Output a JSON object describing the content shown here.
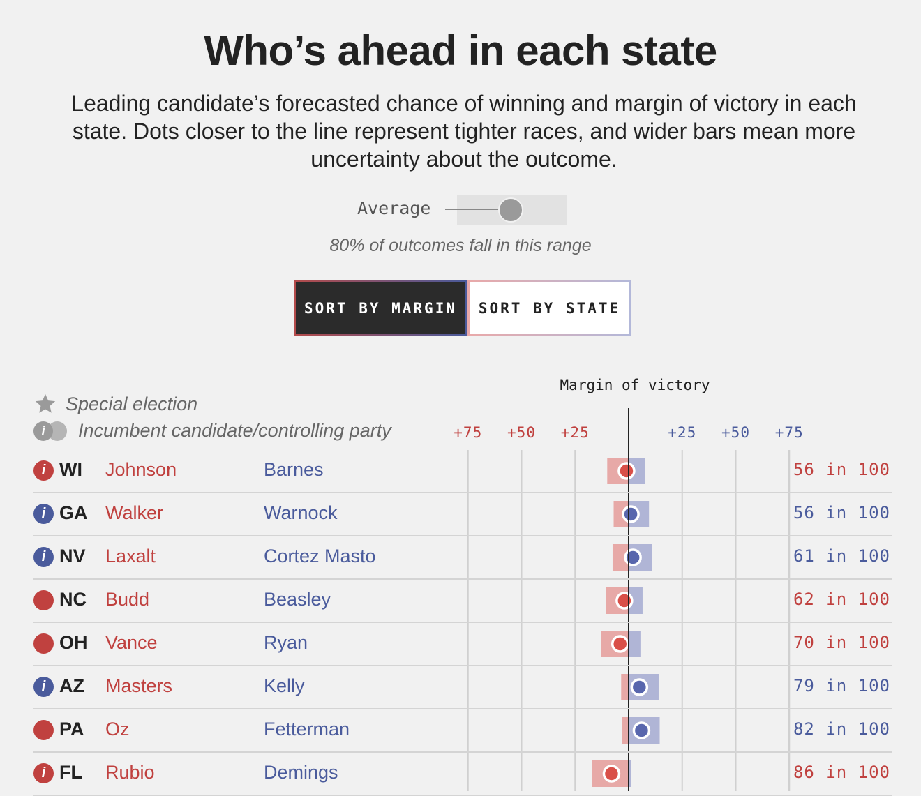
{
  "title": "Who’s ahead in each state",
  "subtitle": "Leading candidate’s forecasted chance of winning and margin of victory in each state. Dots closer to the line represent tighter races, and wider bars mean more uncertainty about the outcome.",
  "toggle": {
    "label": "Average",
    "range_note": "80% of outcomes fall in this range"
  },
  "sort": {
    "margin_label": "SORT BY MARGIN",
    "state_label": "SORT BY STATE"
  },
  "legend": {
    "special": "Special election",
    "incumbent": "Incumbent candidate/controlling party",
    "incumbent_mark": "i"
  },
  "colors": {
    "rep": "#c0413f",
    "dem": "#4a5b9c",
    "rep_bar": "#e7a9a7",
    "dem_bar": "#b0b5d6",
    "dem_dot": "#5866ad",
    "rep_dot": "#d94f48"
  },
  "chart_data": {
    "type": "scatter",
    "title": "Margin of victory",
    "xlim": [
      -100,
      100
    ],
    "ticks": [
      {
        "value": -75,
        "label": "+75",
        "party": "rep"
      },
      {
        "value": -50,
        "label": "+50",
        "party": "rep"
      },
      {
        "value": -25,
        "label": "+25",
        "party": "rep"
      },
      {
        "value": 25,
        "label": "+25",
        "party": "dem"
      },
      {
        "value": 50,
        "label": "+50",
        "party": "dem"
      },
      {
        "value": 75,
        "label": "+75",
        "party": "dem"
      }
    ],
    "rows": [
      {
        "state": "WI",
        "incumbent": "rep",
        "incumbent_mark": "i",
        "rep": "Johnson",
        "dem": "Barnes",
        "margin": -1,
        "low": -10,
        "high": 7.5,
        "leader": "rep",
        "chance": "56 in 100"
      },
      {
        "state": "GA",
        "incumbent": "dem",
        "incumbent_mark": "i",
        "rep": "Walker",
        "dem": "Warnock",
        "margin": 1,
        "low": -7,
        "high": 9.5,
        "leader": "dem",
        "chance": "56 in 100"
      },
      {
        "state": "NV",
        "incumbent": "dem",
        "incumbent_mark": "i",
        "rep": "Laxalt",
        "dem": "Cortez Masto",
        "margin": 2,
        "low": -7.5,
        "high": 11,
        "leader": "dem",
        "chance": "61 in 100"
      },
      {
        "state": "NC",
        "incumbent": "rep",
        "incumbent_mark": "",
        "rep": "Budd",
        "dem": "Beasley",
        "margin": -2,
        "low": -10.5,
        "high": 6.5,
        "leader": "rep",
        "chance": "62 in 100"
      },
      {
        "state": "OH",
        "incumbent": "rep",
        "incumbent_mark": "",
        "rep": "Vance",
        "dem": "Ryan",
        "margin": -4,
        "low": -13,
        "high": 5.5,
        "leader": "rep",
        "chance": "70 in 100"
      },
      {
        "state": "AZ",
        "incumbent": "dem",
        "incumbent_mark": "i",
        "rep": "Masters",
        "dem": "Kelly",
        "margin": 5,
        "low": -3.5,
        "high": 14,
        "leader": "dem",
        "chance": "79 in 100"
      },
      {
        "state": "PA",
        "incumbent": "rep",
        "incumbent_mark": "",
        "rep": "Oz",
        "dem": "Fetterman",
        "margin": 6,
        "low": -3,
        "high": 14.5,
        "leader": "dem",
        "chance": "82 in 100"
      },
      {
        "state": "FL",
        "incumbent": "rep",
        "incumbent_mark": "i",
        "rep": "Rubio",
        "dem": "Demings",
        "margin": -8,
        "low": -17,
        "high": 1,
        "leader": "rep",
        "chance": "86 in 100"
      }
    ]
  }
}
